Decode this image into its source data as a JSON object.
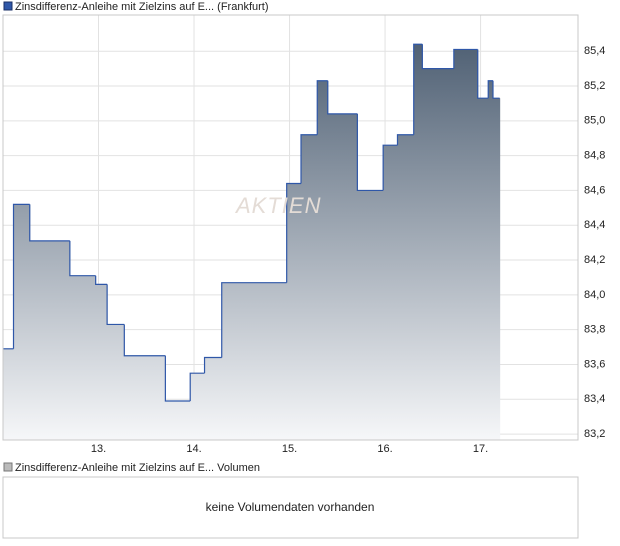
{
  "chart_data": {
    "type": "step-area",
    "x": [
      12.0,
      12.11,
      12.28,
      12.7,
      12.97,
      13.09,
      13.27,
      13.7,
      13.96,
      14.11,
      14.29,
      14.97,
      15.12,
      15.29,
      15.4,
      15.71,
      15.98,
      16.13,
      16.3,
      16.39,
      16.72,
      16.97,
      17.08,
      17.13,
      17.2
    ],
    "series": [
      {
        "name": "Zinsdifferenz-Anleihe mit Zielzins auf E... (Frankfurt)",
        "color": "#2f57a8",
        "values": [
          83.69,
          84.52,
          84.31,
          84.11,
          84.06,
          83.83,
          83.65,
          83.39,
          83.55,
          83.64,
          84.07,
          84.64,
          84.92,
          85.23,
          85.04,
          84.6,
          84.86,
          84.92,
          85.44,
          85.3,
          85.41,
          85.13,
          85.23,
          85.13,
          85.13
        ]
      }
    ],
    "xlim": [
      12.0,
      18.02
    ],
    "xticks": [
      {
        "value": 13,
        "label": "13."
      },
      {
        "value": 14,
        "label": "14."
      },
      {
        "value": 15,
        "label": "15."
      },
      {
        "value": 16,
        "label": "16."
      },
      {
        "value": 17,
        "label": "17."
      }
    ],
    "ylim": [
      83.166,
      85.608
    ],
    "yticks": [
      {
        "value": 83.2,
        "label": "83,2"
      },
      {
        "value": 83.4,
        "label": "83,4"
      },
      {
        "value": 83.6,
        "label": "83,6"
      },
      {
        "value": 83.8,
        "label": "83,8"
      },
      {
        "value": 84.0,
        "label": "84,0"
      },
      {
        "value": 84.2,
        "label": "84,2"
      },
      {
        "value": 84.4,
        "label": "84,4"
      },
      {
        "value": 84.6,
        "label": "84,6"
      },
      {
        "value": 84.8,
        "label": "84,8"
      },
      {
        "value": 85.0,
        "label": "85,0"
      },
      {
        "value": 85.2,
        "label": "85,2"
      },
      {
        "value": 85.4,
        "label": "85,4"
      }
    ],
    "grid": true,
    "watermark": "AKTIEN"
  },
  "volume_panel": {
    "legend": "Zinsdifferenz-Anleihe mit Zielzins auf E... Volumen",
    "message": "keine Volumendaten vorhanden"
  }
}
